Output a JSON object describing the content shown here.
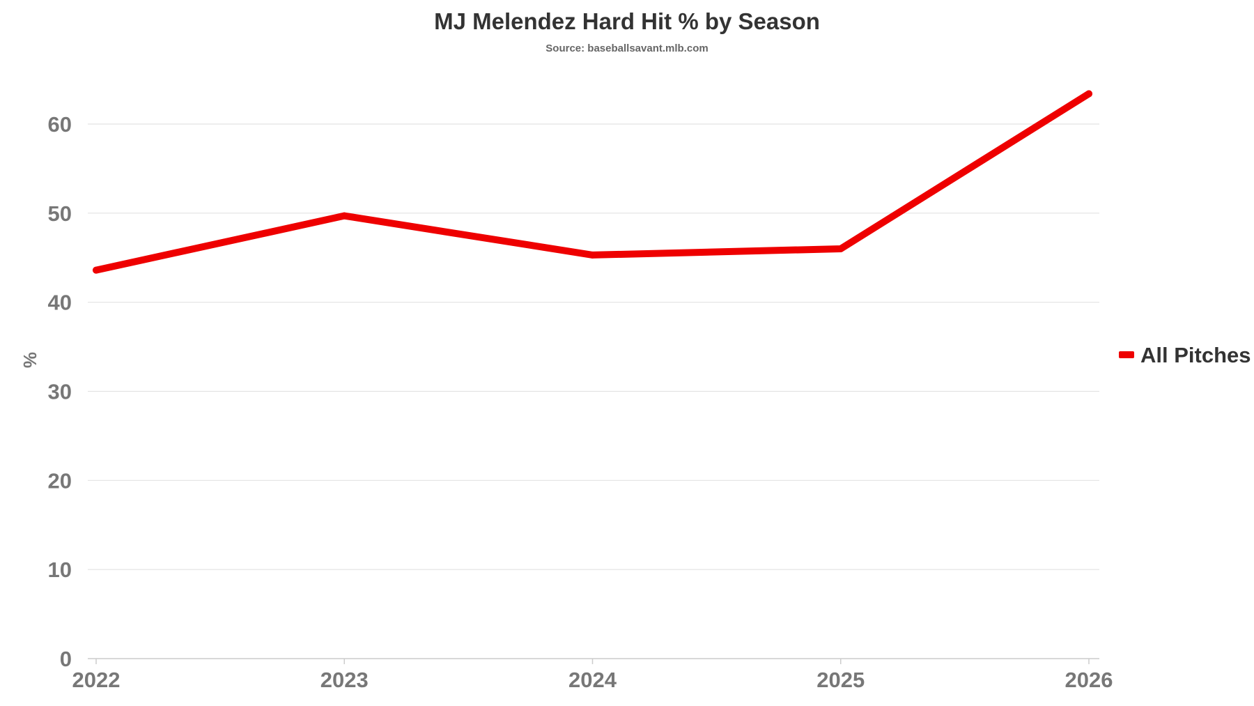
{
  "chart_data": {
    "type": "line",
    "title": "MJ Melendez Hard Hit % by Season",
    "subtitle": "Source: baseballsavant.mlb.com",
    "xlabel": "",
    "ylabel": "%",
    "categories": [
      "2022",
      "2023",
      "2024",
      "2025",
      "2026"
    ],
    "series": [
      {
        "name": "All Pitches",
        "color": "#ee0000",
        "values": [
          43.6,
          49.7,
          45.3,
          46.0,
          63.4
        ]
      }
    ],
    "y_ticks": [
      "0",
      "10",
      "20",
      "30",
      "40",
      "50",
      "60"
    ],
    "ylim": [
      0,
      60
    ],
    "grid": true,
    "legend_position": "right"
  }
}
